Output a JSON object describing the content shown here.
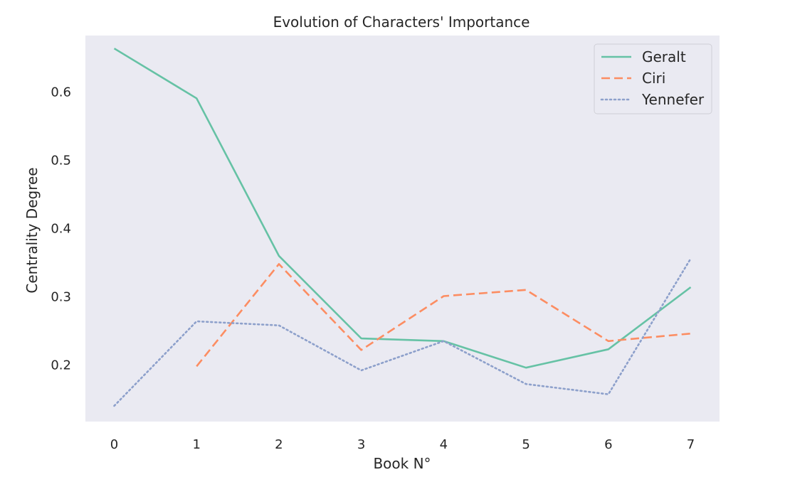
{
  "chart_data": {
    "type": "line",
    "title": "Evolution of Characters' Importance",
    "xlabel": "Book N°",
    "ylabel": "Centrality Degree",
    "x": [
      0,
      1,
      2,
      3,
      4,
      5,
      6,
      7
    ],
    "xticks": [
      "0",
      "1",
      "2",
      "3",
      "4",
      "5",
      "6",
      "7"
    ],
    "yticks": [
      "0.2",
      "0.3",
      "0.4",
      "0.5",
      "0.6"
    ],
    "xlim": [
      -0.35,
      7.35
    ],
    "ylim": [
      0.117,
      0.683
    ],
    "grid": false,
    "legend_position": "top-right",
    "background": "#EAEAF2",
    "series": [
      {
        "name": "Geralt",
        "color": "#66C2A5",
        "dash": "solid",
        "values": [
          0.664,
          0.591,
          0.36,
          0.239,
          0.235,
          0.196,
          0.223,
          0.314
        ]
      },
      {
        "name": "Ciri",
        "color": "#FC8D62",
        "dash": "dashed",
        "values": [
          null,
          0.198,
          0.348,
          0.222,
          0.301,
          0.31,
          0.235,
          0.246
        ]
      },
      {
        "name": "Yennefer",
        "color": "#8DA0CB",
        "dash": "dotted",
        "values": [
          0.14,
          0.264,
          0.258,
          0.192,
          0.235,
          0.172,
          0.157,
          0.356
        ]
      }
    ]
  }
}
